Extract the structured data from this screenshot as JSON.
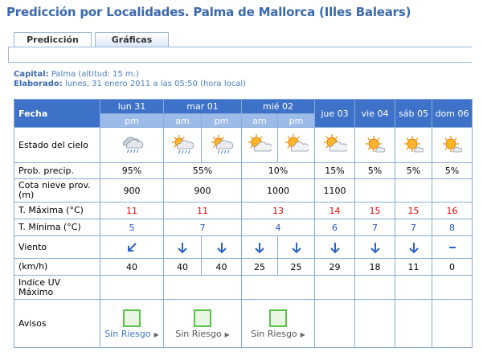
{
  "header": {
    "title": "Predicción por Localidades. Palma de Mallorca (Illes Balears)"
  },
  "tabs": [
    "Predicción",
    "Gráficas"
  ],
  "info": {
    "capital_label": "Capital:",
    "capital": "Palma (altitud: 15 m.)",
    "elaborado_label": "Elaborado:",
    "elaborado": "lunes, 31 enero 2011 a las 05:50 (hora local)"
  },
  "table": {
    "corner": "Fecha",
    "days": [
      {
        "label": "lun 31",
        "periods": [
          "pm"
        ]
      },
      {
        "label": "mar 01",
        "periods": [
          "am",
          "pm"
        ]
      },
      {
        "label": "mié 02",
        "periods": [
          "am",
          "pm"
        ]
      },
      {
        "label": "jue 03",
        "periods": []
      },
      {
        "label": "vie 04",
        "periods": []
      },
      {
        "label": "sáb 05",
        "periods": []
      },
      {
        "label": "dom 06",
        "periods": []
      }
    ],
    "rows": [
      {
        "label": "Estado del cielo"
      },
      {
        "label": "Prob. precip.",
        "cells": [
          "95%",
          "55%",
          "10%",
          "15%",
          "5%",
          "5%",
          "5%"
        ]
      },
      {
        "label": "Cota nieve prov.(m)",
        "cells": [
          900,
          900,
          1000,
          1100,
          null,
          null,
          null
        ]
      },
      {
        "label": "T. Máxima (°C)",
        "cells": [
          11,
          11,
          13,
          14,
          15,
          15,
          16
        ]
      },
      {
        "label": "T. Mínima (°C)",
        "cells": [
          5,
          7,
          4,
          6,
          7,
          7,
          8
        ]
      },
      {
        "label": "Viento"
      },
      {
        "label": "(km/h)",
        "cells": [
          40,
          40,
          40,
          25,
          25,
          29,
          18,
          11,
          0
        ]
      },
      {
        "label": "Indice UV Máximo"
      },
      {
        "label": "Avisos",
        "cells": [
          "Sin Riesgo",
          "Sin Riesgo",
          "Sin Riesgo",
          null,
          null,
          null,
          null
        ]
      }
    ]
  }
}
